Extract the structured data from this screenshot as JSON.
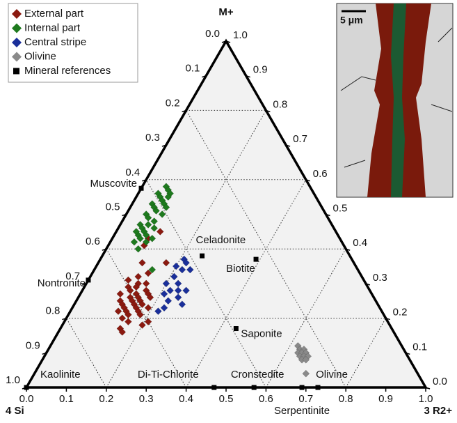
{
  "chart_data": {
    "type": "ternary",
    "axes": {
      "left": "4 Si",
      "right": "3 R2+",
      "top": "M+"
    },
    "ticks": [
      {
        "value": 0,
        "label": "0.0"
      },
      0.1,
      0.2,
      0.3,
      0.4,
      0.5,
      0.6,
      0.7,
      0.8,
      0.9,
      {
        "value": 1,
        "label": "1.0"
      }
    ],
    "grid": [
      0.2,
      0.4,
      0.6,
      0.8
    ],
    "series": [
      {
        "name": "External part",
        "color": "#8b1a10",
        "marker": "diamond",
        "r2": [
          0.09,
          0.09,
          0.11,
          0.11,
          0.17,
          0.14,
          0.12,
          0.1,
          0.13,
          0.15,
          0.11,
          0.13,
          0.16,
          0.12,
          0.14,
          0.17,
          0.1,
          0.13,
          0.15,
          0.18,
          0.11,
          0.14,
          0.16,
          0.12,
          0.15,
          0.17,
          0.13,
          0.16,
          0.19,
          0.14,
          0.17,
          0.12,
          0.15,
          0.18,
          0.14,
          0.16,
          0.21,
          0.15,
          0.16,
          0.2
        ],
        "m": [
          0.41,
          0.43,
          0.45,
          0.36,
          0.36,
          0.33,
          0.32,
          0.31,
          0.3,
          0.3,
          0.29,
          0.29,
          0.28,
          0.28,
          0.27,
          0.27,
          0.27,
          0.26,
          0.26,
          0.26,
          0.25,
          0.25,
          0.25,
          0.24,
          0.24,
          0.24,
          0.23,
          0.23,
          0.23,
          0.22,
          0.22,
          0.22,
          0.21,
          0.21,
          0.2,
          0.19,
          0.19,
          0.17,
          0.16,
          0.18
        ]
      },
      {
        "name": "Internal part",
        "color": "#1e7a1e",
        "marker": "diamond",
        "r2": [
          0.06,
          0.07,
          0.05,
          0.08,
          0.06,
          0.07,
          0.05,
          0.08,
          0.06,
          0.07,
          0.05,
          0.09,
          0.06,
          0.08,
          0.05,
          0.07,
          0.06,
          0.09,
          0.07,
          0.06,
          0.08,
          0.05,
          0.1,
          0.07,
          0.09,
          0.06,
          0.08,
          0.145,
          0.08,
          0.09
        ],
        "m": [
          0.58,
          0.57,
          0.56,
          0.56,
          0.55,
          0.54,
          0.53,
          0.53,
          0.52,
          0.51,
          0.5,
          0.5,
          0.49,
          0.48,
          0.47,
          0.47,
          0.46,
          0.46,
          0.45,
          0.44,
          0.44,
          0.45,
          0.43,
          0.43,
          0.42,
          0.42,
          0.4,
          0.34,
          0.55,
          0.52
        ]
      },
      {
        "name": "Central stripe",
        "color": "#1a2f9a",
        "marker": "diamond",
        "r2": [
          0.21,
          0.22,
          0.2,
          0.22,
          0.24,
          0.21,
          0.2,
          0.23,
          0.22,
          0.24,
          0.26,
          0.21,
          0.25,
          0.23,
          0.27,
          0.23,
          0.22
        ],
        "m": [
          0.37,
          0.36,
          0.35,
          0.34,
          0.34,
          0.32,
          0.3,
          0.3,
          0.28,
          0.28,
          0.28,
          0.27,
          0.26,
          0.25,
          0.24,
          0.23,
          0.22
        ]
      },
      {
        "name": "Olivine",
        "color": "#8a8a8a",
        "marker": "diamond",
        "r2": [
          0.62,
          0.63,
          0.64,
          0.63,
          0.64,
          0.65,
          0.64,
          0.65,
          0.66,
          0.65,
          0.66,
          0.68
        ],
        "m": [
          0.12,
          0.11,
          0.11,
          0.1,
          0.1,
          0.1,
          0.09,
          0.09,
          0.09,
          0.08,
          0.08,
          0.04
        ]
      },
      {
        "name": "Mineral references",
        "color": "#000000",
        "marker": "square",
        "labels": [
          "Muscovite",
          "Nontronite",
          "Kaolinite",
          "Celadonite",
          "Biotite",
          "Saponite",
          "Di-Ti-Chlorite",
          "Cronstedite",
          "Serpentinite",
          "Olivine"
        ],
        "r2": [
          0,
          0,
          0,
          0.25,
          0.39,
          0.44,
          0.47,
          0.57,
          0.69,
          0.73
        ],
        "m": [
          0.575,
          0.31,
          0,
          0.38,
          0.37,
          0.17,
          0,
          0,
          0,
          0
        ]
      }
    ]
  },
  "inset": {
    "scale_label": "5 μm"
  }
}
